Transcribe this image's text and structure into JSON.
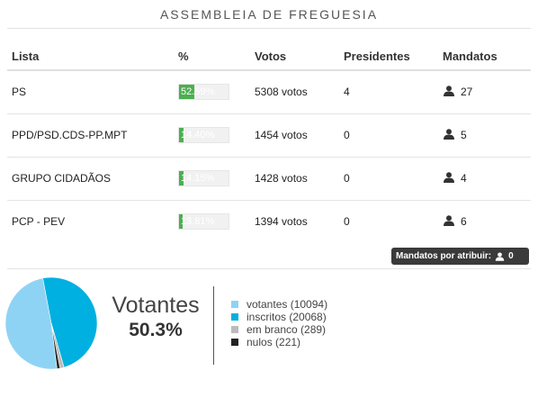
{
  "title": "ASSEMBLEIA DE FREGUESIA",
  "table": {
    "headers": {
      "lista": "Lista",
      "pct": "%",
      "votos": "Votos",
      "presidentes": "Presidentes",
      "mandatos": "Mandatos"
    },
    "rows": [
      {
        "lista": "PS",
        "pct_label": "52.59%",
        "pct": 52.59,
        "votos": "5308 votos",
        "presidentes": "4",
        "mandatos": "27"
      },
      {
        "lista": "PPD/PSD.CDS-PP.MPT",
        "pct_label": "14.40%",
        "pct": 14.4,
        "votos": "1454 votos",
        "presidentes": "0",
        "mandatos": "5"
      },
      {
        "lista": "GRUPO CIDADÃOS",
        "pct_label": "14.15%",
        "pct": 14.15,
        "votos": "1428 votos",
        "presidentes": "0",
        "mandatos": "4"
      },
      {
        "lista": "PCP - PEV",
        "pct_label": "13.81%",
        "pct": 13.81,
        "votos": "1394 votos",
        "presidentes": "0",
        "mandatos": "6"
      }
    ]
  },
  "unassigned": {
    "label": "Mandatos por atribuir:",
    "value": "0"
  },
  "turnout": {
    "label": "Votantes",
    "pct": "50.3%"
  },
  "legend": [
    {
      "label": "votantes (10094)",
      "color": "#8fd3f4"
    },
    {
      "label": "inscritos (20068)",
      "color": "#00b0e0"
    },
    {
      "label": "em branco (289)",
      "color": "#bbbbbb"
    },
    {
      "label": "nulos (221)",
      "color": "#222222"
    }
  ],
  "chart_data": {
    "type": "pie",
    "slices": [
      {
        "name": "votantes",
        "value": 10094,
        "color": "#8fd3f4"
      },
      {
        "name": "inscritos",
        "value": 9974,
        "color": "#00b0e0"
      },
      {
        "name": "em branco",
        "value": 289,
        "color": "#bbbbbb"
      },
      {
        "name": "nulos",
        "value": 221,
        "color": "#222222"
      }
    ]
  }
}
